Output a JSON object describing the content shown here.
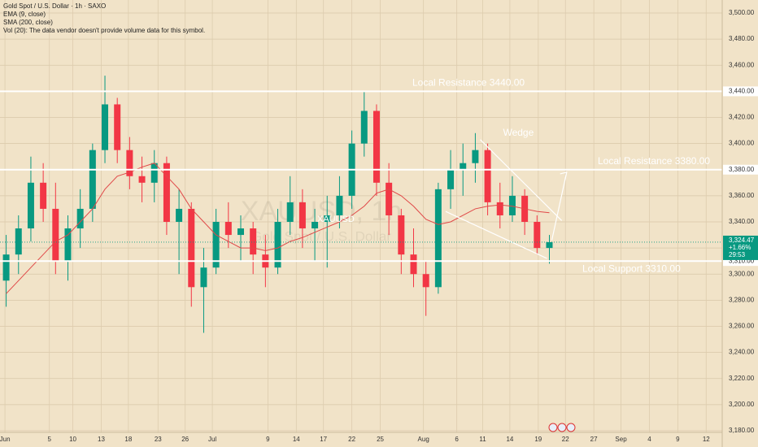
{
  "header": {
    "symbol_line": "Gold Spot / U.S. Dollar · 1h · SAXO",
    "indicators": [
      "EMA (9, close)",
      "SMA (200, close)",
      "Vol (20): The data vendor doesn't provide volume data for this symbol."
    ]
  },
  "watermark": {
    "symbol": "XAUUSD, 1h",
    "description": "Gold Spot / U.S. Dollar"
  },
  "chart_data": {
    "type": "candlestick",
    "up_color": "#089981",
    "down_color": "#f23645",
    "open": [
      3295,
      3315,
      3335,
      3370,
      3350,
      3310,
      3335,
      3350,
      3395,
      3430,
      3395,
      3375,
      3370,
      3385,
      3340,
      3350,
      3290,
      3305,
      3340,
      3330,
      3335,
      3315,
      3305,
      3340,
      3355,
      3335,
      3340,
      3345,
      3360,
      3400,
      3425,
      3370,
      3345,
      3315,
      3300,
      3290,
      3365,
      3380,
      3385,
      3395,
      3355,
      3345,
      3360,
      3340,
      3320
    ],
    "high": [
      3330,
      3345,
      3390,
      3385,
      3370,
      3345,
      3365,
      3400,
      3452,
      3435,
      3405,
      3390,
      3395,
      3390,
      3365,
      3355,
      3320,
      3350,
      3355,
      3345,
      3340,
      3330,
      3350,
      3375,
      3365,
      3350,
      3360,
      3375,
      3410,
      3440,
      3430,
      3385,
      3350,
      3335,
      3310,
      3370,
      3395,
      3400,
      3408,
      3400,
      3370,
      3375,
      3365,
      3345,
      3330
    ],
    "low": [
      3275,
      3300,
      3325,
      3340,
      3300,
      3295,
      3320,
      3340,
      3385,
      3385,
      3365,
      3355,
      3355,
      3330,
      3300,
      3275,
      3255,
      3300,
      3320,
      3310,
      3300,
      3290,
      3300,
      3330,
      3320,
      3310,
      3305,
      3335,
      3350,
      3390,
      3360,
      3330,
      3300,
      3290,
      3268,
      3285,
      3350,
      3360,
      3370,
      3345,
      3335,
      3340,
      3330,
      3315,
      3308
    ],
    "close": [
      3315,
      3335,
      3370,
      3350,
      3310,
      3335,
      3350,
      3395,
      3430,
      3395,
      3375,
      3370,
      3385,
      3340,
      3350,
      3290,
      3305,
      3340,
      3330,
      3335,
      3315,
      3305,
      3340,
      3355,
      3335,
      3340,
      3345,
      3360,
      3400,
      3425,
      3370,
      3345,
      3315,
      3300,
      3290,
      3365,
      3380,
      3385,
      3395,
      3355,
      3345,
      3360,
      3340,
      3320,
      3324.47
    ],
    "overlays": [
      {
        "name": "SMA (200, close)",
        "color": "#e04848",
        "values": [
          3285,
          3295,
          3305,
          3315,
          3325,
          3330,
          3340,
          3350,
          3365,
          3375,
          3378,
          3382,
          3385,
          3375,
          3365,
          3350,
          3340,
          3330,
          3325,
          3320,
          3320,
          3318,
          3320,
          3325,
          3328,
          3332,
          3336,
          3340,
          3345,
          3352,
          3362,
          3365,
          3360,
          3352,
          3342,
          3338,
          3340,
          3345,
          3350,
          3352,
          3353,
          3352,
          3350,
          3348,
          3347
        ]
      }
    ],
    "xlim": [
      -0.5,
      58
    ],
    "xticks": [
      {
        "value": -0.1,
        "label": "Jun"
      },
      {
        "value": 3.5,
        "label": "5"
      },
      {
        "value": 5.4,
        "label": "10"
      },
      {
        "value": 7.7,
        "label": "13"
      },
      {
        "value": 9.9,
        "label": "18"
      },
      {
        "value": 12.3,
        "label": "23"
      },
      {
        "value": 14.5,
        "label": "26"
      },
      {
        "value": 16.7,
        "label": "Jul"
      },
      {
        "value": 21.2,
        "label": "9"
      },
      {
        "value": 23.5,
        "label": "14"
      },
      {
        "value": 25.7,
        "label": "17"
      },
      {
        "value": 28.0,
        "label": "22"
      },
      {
        "value": 30.3,
        "label": "25"
      },
      {
        "value": 33.8,
        "label": "Aug"
      },
      {
        "value": 36.5,
        "label": "6"
      },
      {
        "value": 38.6,
        "label": "11"
      },
      {
        "value": 40.8,
        "label": "14"
      },
      {
        "value": 43.1,
        "label": "19"
      },
      {
        "value": 45.3,
        "label": "22"
      },
      {
        "value": 47.6,
        "label": "27"
      },
      {
        "value": 49.8,
        "label": "Sep"
      },
      {
        "value": 52.1,
        "label": "4"
      },
      {
        "value": 54.4,
        "label": "9"
      },
      {
        "value": 56.7,
        "label": "12"
      }
    ],
    "ylim": [
      3180,
      3500
    ],
    "yticks": [
      {
        "value": 3180,
        "label": "3,180.00"
      },
      {
        "value": 3200,
        "label": "3,200.00"
      },
      {
        "value": 3220,
        "label": "3,220.00"
      },
      {
        "value": 3240,
        "label": "3,240.00"
      },
      {
        "value": 3260,
        "label": "3,260.00"
      },
      {
        "value": 3280,
        "label": "3,280.00"
      },
      {
        "value": 3300,
        "label": "3,300.00"
      },
      {
        "value": 3320,
        "label": "3,320.00"
      },
      {
        "value": 3340,
        "label": "3,340.00"
      },
      {
        "value": 3360,
        "label": "3,360.00"
      },
      {
        "value": 3380,
        "label": "3,380.00"
      },
      {
        "value": 3400,
        "label": "3,400.00"
      },
      {
        "value": 3420,
        "label": "3,420.00"
      },
      {
        "value": 3440,
        "label": "3,440.00"
      },
      {
        "value": 3460,
        "label": "3,460.00"
      },
      {
        "value": 3480,
        "label": "3,480.00"
      },
      {
        "value": 3500,
        "label": "3,500.00"
      }
    ],
    "grid": true,
    "levels": [
      {
        "value": 3440,
        "label": "Local Resistance 3440.00",
        "axis_label": "3,440.00"
      },
      {
        "value": 3380,
        "label": "Local Resistance 3380.00",
        "axis_label": "3,380.00"
      },
      {
        "value": 3310,
        "label": "Local Support 3310.00",
        "axis_label": "3,310.00"
      }
    ],
    "wedge": {
      "label": "Wedge",
      "upper": [
        [
          38.4,
          3403
        ],
        [
          45.0,
          3341
        ]
      ],
      "lower": [
        [
          35.6,
          3348
        ],
        [
          43.8,
          3312
        ]
      ],
      "arrow": [
        [
          44.2,
          3326
        ],
        [
          45.4,
          3378
        ]
      ]
    },
    "drawing_text": "XAUUSD",
    "last_price": {
      "value": 3324.47,
      "label": "3,324.47",
      "change": "+1.66%",
      "countdown": "29:53"
    }
  }
}
